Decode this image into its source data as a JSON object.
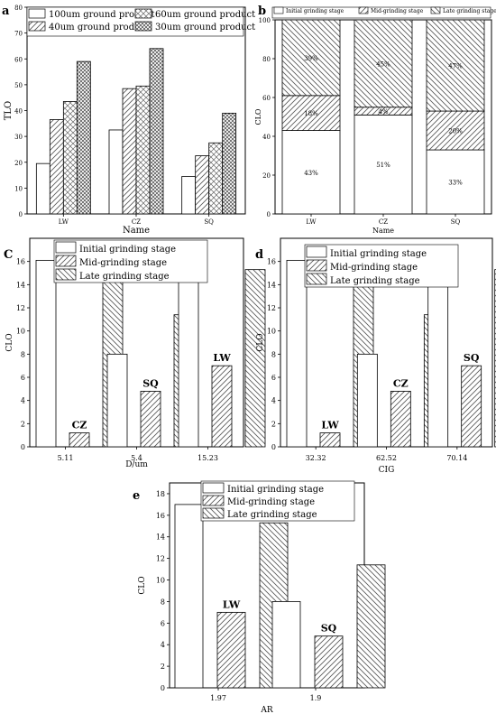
{
  "chart_data": [
    {
      "panel": "a",
      "type": "bar",
      "xlabel": "Name",
      "ylabel": "TLO",
      "ylim": [
        0,
        80
      ],
      "yticks": [
        0,
        10,
        20,
        30,
        40,
        50,
        60,
        70,
        80
      ],
      "categories": [
        "LW",
        "CZ",
        "SQ"
      ],
      "legend": "top",
      "series": [
        {
          "name": "100um ground product",
          "values": [
            19.5,
            32.5,
            14.5
          ],
          "pattern": "blank"
        },
        {
          "name": "40um ground product",
          "values": [
            36.5,
            48.5,
            22.5
          ],
          "pattern": "diag"
        },
        {
          "name": "60um ground product",
          "values": [
            43.5,
            49.5,
            27.5
          ],
          "pattern": "cross"
        },
        {
          "name": "30um ground product",
          "values": [
            59,
            64,
            39
          ],
          "pattern": "grid"
        }
      ]
    },
    {
      "panel": "b",
      "type": "stacked-bar",
      "xlabel": "Name",
      "ylabel": "CLO",
      "ylim": [
        0,
        100
      ],
      "yticks": [
        0,
        20,
        40,
        60,
        80,
        100
      ],
      "categories": [
        "LW",
        "CZ",
        "SQ"
      ],
      "legend": "top",
      "series": [
        {
          "name": "Initial grinding stage",
          "values": [
            43,
            51,
            33
          ],
          "labels": [
            "43%",
            "51%",
            "33%"
          ],
          "pattern": "blank"
        },
        {
          "name": "Mid-grinding stage",
          "values": [
            18,
            4,
            20
          ],
          "labels": [
            "18%",
            "4%",
            "20%"
          ],
          "pattern": "diag"
        },
        {
          "name": "Late grinding stage",
          "values": [
            39,
            45,
            47
          ],
          "labels": [
            "39%",
            "45%",
            "47%"
          ],
          "pattern": "back"
        }
      ]
    },
    {
      "panel": "c",
      "type": "bar",
      "xlabel": "D/um",
      "ylabel": "CLO",
      "ylim": [
        0,
        18
      ],
      "yticks": [
        0,
        2,
        4,
        6,
        8,
        10,
        12,
        14,
        16
      ],
      "categories": [
        "5.11",
        "5.4",
        "15.23"
      ],
      "annotations": [
        "CZ",
        "SQ",
        "LW"
      ],
      "legend": "top",
      "series": [
        {
          "name": "Initial grinding stage",
          "values": [
            16.1,
            8.0,
            17.0
          ],
          "pattern": "blank"
        },
        {
          "name": "Mid-grinding stage",
          "values": [
            1.2,
            4.8,
            7.0
          ],
          "pattern": "diag"
        },
        {
          "name": "Late grinding stage",
          "values": [
            14.3,
            11.4,
            15.3
          ],
          "pattern": "back"
        }
      ]
    },
    {
      "panel": "d",
      "type": "bar",
      "xlabel": "CIG",
      "ylabel": "CLO",
      "ylim": [
        0,
        18
      ],
      "yticks": [
        0,
        2,
        4,
        6,
        8,
        10,
        12,
        14,
        16
      ],
      "categories": [
        "32.32",
        "62.52",
        "70.14"
      ],
      "annotations": [
        "LW",
        "CZ",
        "SQ"
      ],
      "legend": "top",
      "series": [
        {
          "name": "Initial grinding stage",
          "values": [
            16.1,
            8.0,
            17.0
          ],
          "pattern": "blank"
        },
        {
          "name": "Mid-grinding stage",
          "values": [
            1.2,
            4.8,
            7.0
          ],
          "pattern": "diag"
        },
        {
          "name": "Late grinding stage",
          "values": [
            14.3,
            11.4,
            15.3
          ],
          "pattern": "back"
        }
      ]
    },
    {
      "panel": "e",
      "type": "bar",
      "xlabel": "AR",
      "ylabel": "CLO",
      "ylim": [
        0,
        19
      ],
      "yticks": [
        0,
        2,
        4,
        6,
        8,
        10,
        12,
        14,
        16,
        18
      ],
      "categories": [
        "1.97",
        "1.9"
      ],
      "annotations": [
        "LW",
        "SQ"
      ],
      "legend": "top",
      "series": [
        {
          "name": "Initial grinding stage",
          "values": [
            17.0,
            8.0
          ],
          "pattern": "blank"
        },
        {
          "name": "Mid-grinding stage",
          "values": [
            7.0,
            4.8
          ],
          "pattern": "diag"
        },
        {
          "name": "Late grinding stage",
          "values": [
            15.3,
            11.4
          ],
          "pattern": "back"
        }
      ]
    }
  ]
}
